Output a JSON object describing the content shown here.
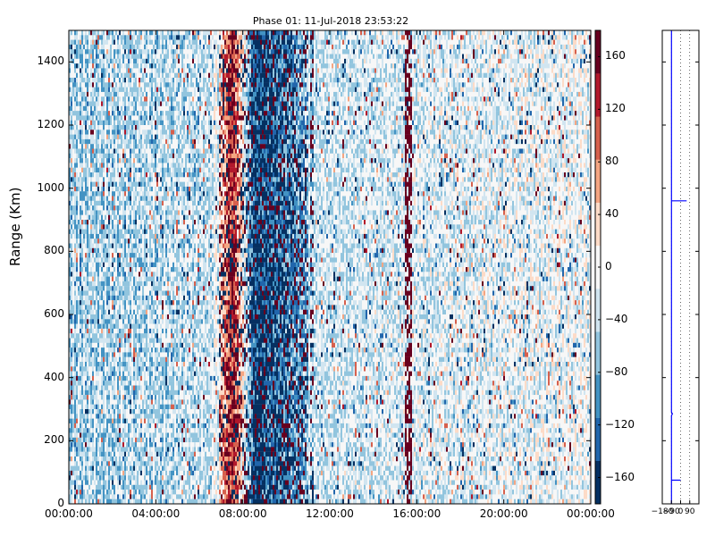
{
  "chart_data": [
    {
      "type": "heatmap",
      "title": "Phase 01: 11-Jul-2018 23:53:22",
      "xlabel": "",
      "ylabel": "Range (Km)",
      "x_ticks": [
        "00:00:00",
        "04:00:00",
        "08:00:00",
        "12:00:00",
        "16:00:00",
        "20:00:00",
        "00:00:00"
      ],
      "y_ticks": [
        0,
        200,
        400,
        600,
        800,
        1000,
        1200,
        1400
      ],
      "ylim": [
        0,
        1500
      ],
      "colorbar": {
        "ticks": [
          160,
          120,
          80,
          40,
          0,
          -40,
          -80,
          -120,
          -160
        ],
        "tick_labels": [
          "160",
          "120",
          "80",
          "40",
          "0",
          "−40",
          "−80",
          "−120",
          "−160"
        ],
        "range": [
          -180,
          180
        ],
        "colormap": "RdBu_r",
        "colors": [
          "#053061",
          "#2166ac",
          "#4393c3",
          "#92c5de",
          "#d1e5f0",
          "#f7f7f7",
          "#fddbc7",
          "#f4a582",
          "#d6604d",
          "#b2182b",
          "#67001f"
        ]
      },
      "intensity_profile": {
        "description_hours": [
          0,
          6.5,
          7.5,
          8.5,
          9.5,
          10.5,
          11.5,
          16,
          24
        ],
        "dominant_phase": [
          -60,
          -40,
          140,
          -150,
          -130,
          -90,
          -30,
          -20,
          0
        ]
      }
    },
    {
      "type": "line",
      "x_ticks": [
        -180,
        -90,
        0,
        90
      ],
      "x_tick_labels": [
        "−180",
        "−90",
        "0",
        "90"
      ],
      "xlim": [
        -180,
        180
      ],
      "ylim": [
        0,
        1500
      ],
      "series": [
        {
          "color": "#0000ff",
          "points": [
            [
              -90,
              0
            ],
            [
              -90,
              75
            ],
            [
              0,
              75
            ],
            [
              -90,
              75
            ],
            [
              -90,
              280
            ],
            [
              -80,
              285
            ],
            [
              -90,
              290
            ],
            [
              -90,
              960
            ],
            [
              60,
              960
            ],
            [
              -90,
              960
            ],
            [
              -90,
              1500
            ]
          ]
        }
      ]
    }
  ]
}
